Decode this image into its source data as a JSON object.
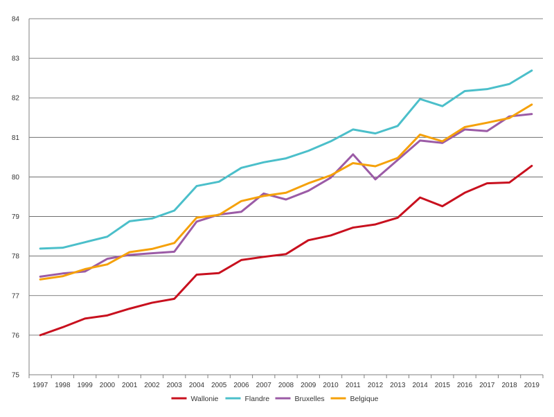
{
  "chart_data": {
    "type": "line",
    "title": "",
    "xlabel": "",
    "ylabel": "",
    "x": [
      "1997",
      "1998",
      "1999",
      "2000",
      "2001",
      "2002",
      "2003",
      "2004",
      "2005",
      "2006",
      "2007",
      "2008",
      "2009",
      "2010",
      "2011",
      "2012",
      "2013",
      "2014",
      "2015",
      "2016",
      "2017",
      "2018",
      "2019"
    ],
    "ylim": [
      75,
      84
    ],
    "yticks": [
      "75",
      "76",
      "77",
      "78",
      "79",
      "80",
      "81",
      "82",
      "83",
      "84"
    ],
    "grid": "horizontal",
    "legend_position": "bottom",
    "series": [
      {
        "name": "Wallonie",
        "color": "#c8101e",
        "values": [
          76.0,
          76.2,
          76.42,
          76.5,
          76.67,
          76.82,
          76.92,
          77.53,
          77.57,
          77.9,
          77.98,
          78.05,
          78.4,
          78.52,
          78.72,
          78.8,
          78.97,
          79.48,
          79.26,
          79.6,
          79.84,
          79.86,
          80.28
        ]
      },
      {
        "name": "Flandre",
        "color": "#4bbfca",
        "values": [
          78.19,
          78.21,
          78.35,
          78.49,
          78.88,
          78.95,
          79.15,
          79.77,
          79.88,
          80.23,
          80.37,
          80.47,
          80.66,
          80.9,
          81.2,
          81.1,
          81.29,
          81.97,
          81.79,
          82.17,
          82.22,
          82.35,
          82.69
        ]
      },
      {
        "name": "Bruxelles",
        "color": "#9b5ba6",
        "values": [
          77.48,
          77.56,
          77.61,
          77.93,
          78.03,
          78.07,
          78.11,
          78.87,
          79.05,
          79.12,
          79.58,
          79.43,
          79.65,
          79.98,
          80.57,
          79.94,
          80.43,
          80.92,
          80.86,
          81.2,
          81.16,
          81.53,
          81.59
        ]
      },
      {
        "name": "Belgique",
        "color": "#f5a10a",
        "values": [
          77.41,
          77.49,
          77.67,
          77.79,
          78.1,
          78.18,
          78.33,
          78.97,
          79.04,
          79.39,
          79.52,
          79.6,
          79.84,
          80.04,
          80.35,
          80.27,
          80.48,
          81.07,
          80.9,
          81.26,
          81.37,
          81.49,
          81.83
        ]
      }
    ]
  }
}
